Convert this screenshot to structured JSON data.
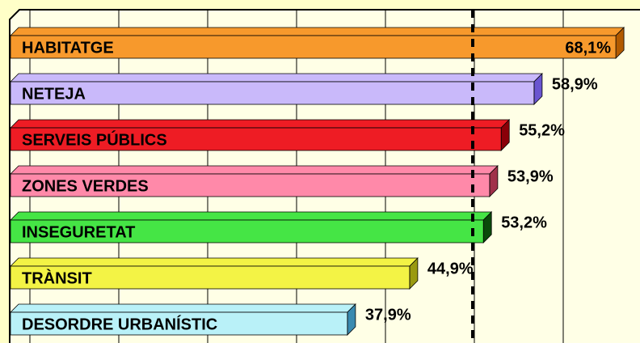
{
  "chart_data": {
    "type": "bar",
    "orientation": "horizontal",
    "categories": [
      "HABITATGE",
      "NETEJA",
      "SERVEIS PÚBLICS",
      "ZONES VERDES",
      "INSEGURETAT",
      "TRÀNSIT",
      "DESORDRE URBANÍSTIC"
    ],
    "values": [
      68.1,
      58.9,
      55.2,
      53.9,
      53.2,
      44.9,
      37.9
    ],
    "value_labels": [
      "68,1%",
      "58,9%",
      "55,2%",
      "53,9%",
      "53,2%",
      "44,9%",
      "37,9%"
    ],
    "colors": [
      "#f7992c",
      "#c9b9fa",
      "#ee1c24",
      "#ff89a9",
      "#45e545",
      "#f3f345",
      "#b9f1f8"
    ],
    "side_colors": [
      "#b25a00",
      "#6a55d0",
      "#8a0008",
      "#a0304a",
      "#0a4a0a",
      "#9a9a10",
      "#3a8ab0"
    ],
    "xlim": [
      0,
      70
    ],
    "xticks": [
      0,
      10,
      20,
      30,
      40,
      50,
      60,
      70
    ],
    "grid": true,
    "reference_line": 52
  }
}
